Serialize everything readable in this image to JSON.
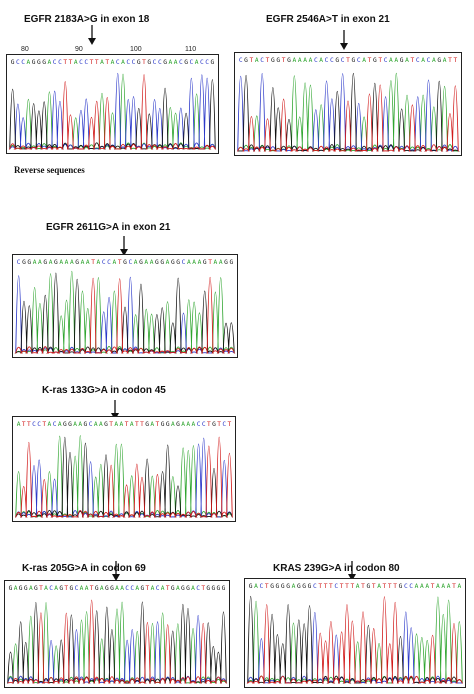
{
  "base_colors": {
    "A": "#2fa52f",
    "C": "#2b38c9",
    "G": "#111111",
    "T": "#d11a1a"
  },
  "section_label": "Reverse sequences",
  "panels": [
    {
      "id": "p1",
      "title": "EGFR 2183A>G in exon 18",
      "sequence": "GCCAGGGACCTTACCTTATACACCGTGCCGAACGCACCG",
      "ruler": [
        "80",
        "90",
        "100",
        "110"
      ],
      "seed": 7
    },
    {
      "id": "p2",
      "title": "EGFR 2546A>T in exon 21",
      "sequence": "CGTACTGGTGAAAACACCGCTGCATGTCAAGATCACAGATT",
      "ruler": [],
      "seed": 13
    },
    {
      "id": "p3",
      "title": "EGFR 2611G>A in exon 21",
      "sequence": "CGGAAGAGAAAGAATACCATGCAGAAGGAGGCAAAGTAAGG",
      "ruler": [],
      "seed": 21
    },
    {
      "id": "p4",
      "title": "K-ras 133G>A in codon 45",
      "sequence": "ATTCCTACAGGAAGCAAGTAATATTGATGGAGAAACCTGTCT",
      "ruler": [],
      "seed": 33
    },
    {
      "id": "p5",
      "title": "K-ras 205G>A in codon 69",
      "sequence": "GAGGAGTACAGTGCAATGAGGAACCAGTACATGAGGACTGGGG",
      "ruler": [],
      "seed": 41
    },
    {
      "id": "p6",
      "title": "KRAS 239G>A in codon 80",
      "sequence": "GACTGGGGAGGGCTTTCTTTATGTATTTGCCAAATAAATA",
      "ruler": [],
      "seed": 57
    }
  ]
}
